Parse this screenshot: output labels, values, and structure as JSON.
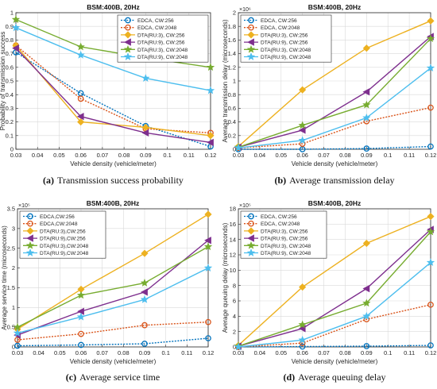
{
  "chart_data": [
    {
      "id": "a",
      "type": "line",
      "title": "BSM:400B, 20Hz",
      "xlabel": "Vehicle density (vehicle/meter)",
      "ylabel": "Probability of transmission success",
      "caption_letter": "(a)",
      "caption_text": "Transmission success probability",
      "x": [
        0.03,
        0.06,
        0.09,
        0.12
      ],
      "xlim": [
        0.03,
        0.12
      ],
      "xticks": [
        "0.03",
        "0.04",
        "0.05",
        "0.06",
        "0.07",
        "0.08",
        "0.09",
        "0.1",
        "0.11",
        "0.12"
      ],
      "ylim": [
        0,
        1
      ],
      "yticks": [
        "0",
        "0.1",
        "0.2",
        "0.3",
        "0.4",
        "0.5",
        "0.6",
        "0.7",
        "0.8",
        "0.9",
        "1"
      ],
      "scale_label": "",
      "grid": true,
      "legend_position": "top-right",
      "series": [
        {
          "name": "EDCA, CW:256",
          "color": "#0072bd",
          "marker": "circle",
          "dash": "dotted",
          "values": [
            0.71,
            0.41,
            0.17,
            0.02
          ]
        },
        {
          "name": "EDCA, CW:2048",
          "color": "#d95319",
          "marker": "circle",
          "dash": "dotted",
          "values": [
            0.76,
            0.37,
            0.15,
            0.12
          ]
        },
        {
          "name": "DTA(RU:3), CW:256",
          "color": "#edb120",
          "marker": "diamond",
          "dash": "solid",
          "values": [
            0.76,
            0.2,
            0.16,
            0.1
          ]
        },
        {
          "name": "DTA(RU:9), CW:256",
          "color": "#7e2f8e",
          "marker": "triangle-left",
          "dash": "solid",
          "values": [
            0.74,
            0.24,
            0.12,
            0.05
          ]
        },
        {
          "name": "DTA(RU:3), CW:2048",
          "color": "#77ac30",
          "marker": "star",
          "dash": "solid",
          "values": [
            0.95,
            0.75,
            0.67,
            0.6
          ]
        },
        {
          "name": "DTA(RU:9), CW:2048",
          "color": "#4dbeee",
          "marker": "star",
          "dash": "solid",
          "values": [
            0.89,
            0.69,
            0.52,
            0.43
          ]
        }
      ]
    },
    {
      "id": "b",
      "type": "line",
      "title": "BSM:400B, 20Hz",
      "xlabel": "Vehicle density (vehicle/meter)",
      "ylabel": "Average transmission delay (microseconds)",
      "caption_letter": "(b)",
      "caption_text": "Average transmission delay",
      "x": [
        0.03,
        0.06,
        0.09,
        0.12
      ],
      "xlim": [
        0.03,
        0.12
      ],
      "xticks": [
        "0.03",
        "0.04",
        "0.05",
        "0.06",
        "0.07",
        "0.08",
        "0.09",
        "0.1",
        "0.11",
        "0.12"
      ],
      "ylim": [
        0,
        2
      ],
      "yticks": [
        "0",
        "0.2",
        "0.4",
        "0.6",
        "0.8",
        "1",
        "1.2",
        "1.4",
        "1.6",
        "1.8",
        "2"
      ],
      "scale_label": "×10⁶",
      "grid": true,
      "legend_position": "top-left",
      "series": [
        {
          "name": "EDCA, CW:256",
          "color": "#0072bd",
          "marker": "circle",
          "dash": "dotted",
          "values": [
            0.0,
            0.0,
            0.01,
            0.04
          ]
        },
        {
          "name": "EDCA, CW:2048",
          "color": "#d95319",
          "marker": "circle",
          "dash": "dotted",
          "values": [
            0.02,
            0.08,
            0.41,
            0.61
          ]
        },
        {
          "name": "DTA(RU:3), CW:256",
          "color": "#edb120",
          "marker": "diamond",
          "dash": "solid",
          "values": [
            0.04,
            0.87,
            1.48,
            1.88
          ]
        },
        {
          "name": "DTA(RU:9), CW:256",
          "color": "#7e2f8e",
          "marker": "triangle-left",
          "dash": "solid",
          "values": [
            0.03,
            0.28,
            0.84,
            1.65
          ]
        },
        {
          "name": "DTA(RU:3), CW:2048",
          "color": "#77ac30",
          "marker": "star",
          "dash": "solid",
          "values": [
            0.03,
            0.35,
            0.65,
            1.62
          ]
        },
        {
          "name": "DTA(RU:9), CW:2048",
          "color": "#4dbeee",
          "marker": "star",
          "dash": "solid",
          "values": [
            0.02,
            0.13,
            0.46,
            1.19
          ]
        }
      ]
    },
    {
      "id": "c",
      "type": "line",
      "title": "BSM:400B, 20Hz",
      "xlabel": "Vehicle density (vehicle/meter)",
      "ylabel": "Average service time (microseconds)",
      "caption_letter": "(c)",
      "caption_text": "Average service time",
      "x": [
        0.03,
        0.06,
        0.09,
        0.12
      ],
      "xlim": [
        0.03,
        0.12
      ],
      "xticks": [
        "0.03",
        "0.04",
        "0.05",
        "0.06",
        "0.07",
        "0.08",
        "0.09",
        "0.1",
        "0.11",
        "0.12"
      ],
      "ylim": [
        0,
        3.5
      ],
      "yticks": [
        "0",
        "0.5",
        "1",
        "1.5",
        "2",
        "2.5",
        "3",
        "3.5"
      ],
      "scale_label": "×10⁵",
      "grid": true,
      "legend_position": "top-left",
      "series": [
        {
          "name": "EDCA,CW:256",
          "color": "#0072bd",
          "marker": "circle",
          "dash": "dotted",
          "values": [
            0.03,
            0.05,
            0.08,
            0.22
          ]
        },
        {
          "name": "EDCA,CW:2048",
          "color": "#d95319",
          "marker": "circle",
          "dash": "dotted",
          "values": [
            0.18,
            0.33,
            0.55,
            0.63
          ]
        },
        {
          "name": "DTA(RU:3),CW:256",
          "color": "#edb120",
          "marker": "diamond",
          "dash": "solid",
          "values": [
            0.45,
            1.46,
            2.37,
            3.36
          ]
        },
        {
          "name": "DTA(RU:9),CW:256",
          "color": "#7e2f8e",
          "marker": "triangle-left",
          "dash": "solid",
          "values": [
            0.3,
            0.9,
            1.39,
            2.7
          ]
        },
        {
          "name": "DTA(RU:3),CW:2048",
          "color": "#77ac30",
          "marker": "star",
          "dash": "solid",
          "values": [
            0.5,
            1.31,
            1.62,
            2.54
          ]
        },
        {
          "name": "DTA(RU:9),CW:2048",
          "color": "#4dbeee",
          "marker": "star",
          "dash": "solid",
          "values": [
            0.35,
            0.76,
            1.2,
            2.0
          ]
        }
      ]
    },
    {
      "id": "d",
      "type": "line",
      "title": "BSM:400B, 20Hz",
      "xlabel": "Vehicle density (vehicle/meter)",
      "ylabel": "Average queuing delay (microseconds)",
      "caption_letter": "(d)",
      "caption_text": "Average queuing delay",
      "x": [
        0.03,
        0.06,
        0.09,
        0.12
      ],
      "xlim": [
        0.03,
        0.12
      ],
      "xticks": [
        "0.03",
        "0.04",
        "0.05",
        "0.06",
        "0.07",
        "0.08",
        "0.09",
        "0.1",
        "0.11",
        "0.12"
      ],
      "ylim": [
        0,
        18
      ],
      "yticks": [
        "0",
        "2",
        "4",
        "6",
        "8",
        "10",
        "12",
        "14",
        "16",
        "18"
      ],
      "scale_label": "×10⁵",
      "grid": true,
      "legend_position": "top-left",
      "series": [
        {
          "name": "EDCA, CW:256",
          "color": "#0072bd",
          "marker": "circle",
          "dash": "dotted",
          "values": [
            0.0,
            0.05,
            0.1,
            0.2
          ]
        },
        {
          "name": "EDCA, CW:2048",
          "color": "#d95319",
          "marker": "circle",
          "dash": "dotted",
          "values": [
            0.0,
            0.5,
            3.6,
            5.5
          ]
        },
        {
          "name": "DTA(RU:3), CW:256",
          "color": "#edb120",
          "marker": "diamond",
          "dash": "solid",
          "values": [
            0.2,
            7.8,
            13.5,
            17.0
          ]
        },
        {
          "name": "DTA(RU:9), CW:256",
          "color": "#7e2f8e",
          "marker": "triangle-left",
          "dash": "solid",
          "values": [
            0.1,
            2.4,
            7.6,
            15.3
          ]
        },
        {
          "name": "DTA(RU:3), CW:2048",
          "color": "#77ac30",
          "marker": "star",
          "dash": "solid",
          "values": [
            0.1,
            2.9,
            5.7,
            15.0
          ]
        },
        {
          "name": "DTA(RU:9), CW:2048",
          "color": "#4dbeee",
          "marker": "star",
          "dash": "solid",
          "values": [
            0.0,
            0.9,
            4.0,
            11.0
          ]
        }
      ]
    }
  ]
}
